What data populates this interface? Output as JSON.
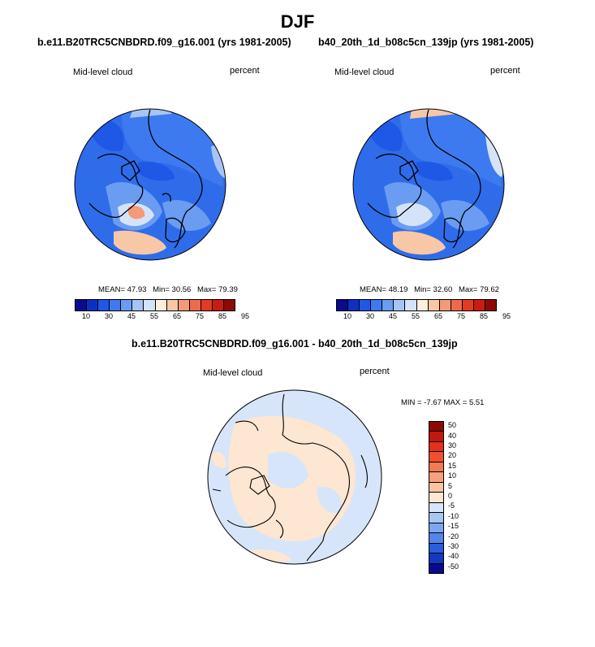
{
  "figure": {
    "title": "DJF",
    "left_panel": {
      "case_title": "b.e11.B20TRC5CNBDRD.f09_g16.001 (yrs 1981-2005)",
      "variable_label": "Mid-level cloud",
      "units_label": "percent",
      "stats": {
        "mean": "MEAN=  47.93",
        "min": "Min=  30.56",
        "max": "Max=  79.39"
      }
    },
    "right_panel": {
      "case_title": "b40_20th_1d_b08c5cn_139jp (yrs 1981-2005)",
      "variable_label": "Mid-level cloud",
      "units_label": "percent",
      "stats": {
        "mean": "MEAN=  48.19",
        "min": "Min=  32.60",
        "max": "Max=  79.62"
      }
    },
    "diff_panel": {
      "case_title": "b.e11.B20TRC5CNBDRD.f09_g16.001 - b40_20th_1d_b08c5cn_139jp",
      "variable_label": "Mid-level cloud",
      "units_label": "percent",
      "minmax": "MIN =  -7.67 MAX =   5.51"
    },
    "colorbar_abs": {
      "tick_labels": [
        "10",
        "30",
        "45",
        "55",
        "65",
        "75",
        "85",
        "95"
      ],
      "colors": [
        "#0a0a8c",
        "#0f2fc4",
        "#1d58e6",
        "#3d7af0",
        "#6a9cf2",
        "#a6c4f5",
        "#d4e3f8",
        "#fdeedd",
        "#f8c7a6",
        "#f39a7a",
        "#ee6a4c",
        "#e53a22",
        "#cc1b10",
        "#8c0a05"
      ]
    },
    "colorbar_diff": {
      "tick_labels": [
        "50",
        "40",
        "30",
        "20",
        "15",
        "10",
        "5",
        "0",
        "-5",
        "-10",
        "-15",
        "-20",
        "-30",
        "-40",
        "-50"
      ],
      "colors": [
        "#8c0a05",
        "#c4170c",
        "#e5301a",
        "#f0502f",
        "#f47a55",
        "#f7a07c",
        "#f9c4a4",
        "#fde6d2",
        "#d6e5f9",
        "#a9c6f3",
        "#7ea6ee",
        "#5585ea",
        "#2d5ddf",
        "#1538c0",
        "#0a0a8c"
      ]
    }
  }
}
